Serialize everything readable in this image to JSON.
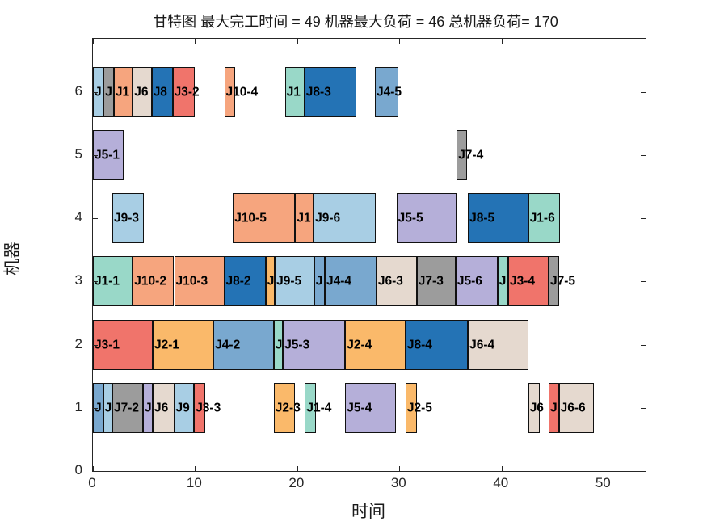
{
  "window": {
    "background": "#ffffff"
  },
  "chart_data": {
    "type": "gantt",
    "title": "甘特图 最大完工时间 = 49 机器最大负荷 = 46 总机器负荷= 170",
    "makespan": 49,
    "max_machine_load": 46,
    "total_machine_load": 170,
    "xlabel": "时间",
    "ylabel": "机器",
    "xlim": [
      0,
      54.1
    ],
    "ylim": [
      0,
      6.84
    ],
    "x_ticks": [
      0,
      10,
      20,
      30,
      40,
      50
    ],
    "y_ticks": [
      0,
      1,
      2,
      3,
      4,
      5,
      6
    ],
    "grid": false,
    "legend": "none",
    "axis_color": "#262626",
    "bar_edge_color": "#111111",
    "label_color": "#000000",
    "job_colors": {
      "J1": "#99d8c8",
      "J2": "#fab96a",
      "J3": "#f0746b",
      "J4": "#79a8cf",
      "J5": "#b5afd9",
      "J6": "#e5d9cf",
      "J7": "#9c9c9c",
      "J8": "#2473b5",
      "J9": "#a8cee4",
      "J10": "#f6a57e"
    },
    "tasks": [
      {
        "machine": 6,
        "job": "J9",
        "label": "J",
        "start": 0,
        "end": 1.05
      },
      {
        "machine": 6,
        "job": "J7",
        "label": "J",
        "start": 1.05,
        "end": 2.05
      },
      {
        "machine": 6,
        "job": "J10",
        "label": "J1",
        "start": 2.05,
        "end": 3.9
      },
      {
        "machine": 6,
        "job": "J6",
        "label": "J6",
        "start": 3.9,
        "end": 5.75
      },
      {
        "machine": 6,
        "job": "J8",
        "label": "J8",
        "start": 5.75,
        "end": 7.8
      },
      {
        "machine": 6,
        "job": "J3",
        "label": "J3-2",
        "start": 7.8,
        "end": 9.95
      },
      {
        "machine": 6,
        "job": "J10",
        "label": "J10-4",
        "start": 12.85,
        "end": 13.9
      },
      {
        "machine": 6,
        "job": "J1",
        "label": "J1",
        "start": 18.8,
        "end": 20.7
      },
      {
        "machine": 6,
        "job": "J8",
        "label": "J8-3",
        "start": 20.7,
        "end": 25.75
      },
      {
        "machine": 6,
        "job": "J4",
        "label": "J4-5",
        "start": 27.6,
        "end": 29.9
      },
      {
        "machine": 5,
        "job": "J5",
        "label": "J5-1",
        "start": 0,
        "end": 3.0
      },
      {
        "machine": 5,
        "job": "J7",
        "label": "J7-4",
        "start": 35.6,
        "end": 36.6
      },
      {
        "machine": 4,
        "job": "J9",
        "label": "J9-3",
        "start": 1.9,
        "end": 5.0
      },
      {
        "machine": 4,
        "job": "J10",
        "label": "J10-5",
        "start": 13.7,
        "end": 19.8
      },
      {
        "machine": 4,
        "job": "J10",
        "label": "J1",
        "start": 19.8,
        "end": 21.6
      },
      {
        "machine": 4,
        "job": "J9",
        "label": "J9-6",
        "start": 21.6,
        "end": 27.7
      },
      {
        "machine": 4,
        "job": "J5",
        "label": "J5-5",
        "start": 29.7,
        "end": 35.6
      },
      {
        "machine": 4,
        "job": "J8",
        "label": "J8-5",
        "start": 36.7,
        "end": 42.6
      },
      {
        "machine": 4,
        "job": "J1",
        "label": "J1-6",
        "start": 42.6,
        "end": 45.7
      },
      {
        "machine": 3,
        "job": "J1",
        "label": "J1-1",
        "start": 0,
        "end": 3.9
      },
      {
        "machine": 3,
        "job": "J10",
        "label": "J10-2",
        "start": 3.9,
        "end": 7.95
      },
      {
        "machine": 3,
        "job": "J10",
        "label": "J10-3",
        "start": 7.95,
        "end": 12.85
      },
      {
        "machine": 3,
        "job": "J8",
        "label": "J8-2",
        "start": 12.85,
        "end": 16.9
      },
      {
        "machine": 3,
        "job": "J2",
        "label": "J",
        "start": 16.9,
        "end": 17.8
      },
      {
        "machine": 3,
        "job": "J9",
        "label": "J9-5",
        "start": 17.8,
        "end": 21.65
      },
      {
        "machine": 3,
        "job": "J4",
        "label": "J",
        "start": 21.65,
        "end": 22.7
      },
      {
        "machine": 3,
        "job": "J4",
        "label": "J4-4",
        "start": 22.7,
        "end": 27.75
      },
      {
        "machine": 3,
        "job": "J6",
        "label": "J6-3",
        "start": 27.75,
        "end": 31.7
      },
      {
        "machine": 3,
        "job": "J7",
        "label": "J7-3",
        "start": 31.7,
        "end": 35.5
      },
      {
        "machine": 3,
        "job": "J5",
        "label": "J5-6",
        "start": 35.5,
        "end": 39.6
      },
      {
        "machine": 3,
        "job": "J1",
        "label": "J",
        "start": 39.6,
        "end": 40.65
      },
      {
        "machine": 3,
        "job": "J3",
        "label": "J3-4",
        "start": 40.65,
        "end": 44.6
      },
      {
        "machine": 3,
        "job": "J7",
        "label": "J7-5",
        "start": 44.6,
        "end": 45.65
      },
      {
        "machine": 2,
        "job": "J3",
        "label": "J3-1",
        "start": 0,
        "end": 5.85
      },
      {
        "machine": 2,
        "job": "J2",
        "label": "J2-1",
        "start": 5.85,
        "end": 11.8
      },
      {
        "machine": 2,
        "job": "J4",
        "label": "J4-2",
        "start": 11.8,
        "end": 17.7
      },
      {
        "machine": 2,
        "job": "J1",
        "label": "J",
        "start": 17.7,
        "end": 18.6
      },
      {
        "machine": 2,
        "job": "J5",
        "label": "J5-3",
        "start": 18.6,
        "end": 24.7
      },
      {
        "machine": 2,
        "job": "J2",
        "label": "J2-4",
        "start": 24.7,
        "end": 30.6
      },
      {
        "machine": 2,
        "job": "J8",
        "label": "J8-4",
        "start": 30.6,
        "end": 36.7
      },
      {
        "machine": 2,
        "job": "J6",
        "label": "J6-4",
        "start": 36.7,
        "end": 42.6
      },
      {
        "machine": 1,
        "job": "J4",
        "label": "J",
        "start": 0,
        "end": 1.0
      },
      {
        "machine": 1,
        "job": "J9",
        "label": "J",
        "start": 1.0,
        "end": 1.9
      },
      {
        "machine": 1,
        "job": "J7",
        "label": "J7-2",
        "start": 1.9,
        "end": 4.9
      },
      {
        "machine": 1,
        "job": "J5",
        "label": "J",
        "start": 4.9,
        "end": 5.85
      },
      {
        "machine": 1,
        "job": "J6",
        "label": "J6",
        "start": 5.85,
        "end": 7.95
      },
      {
        "machine": 1,
        "job": "J9",
        "label": "J9",
        "start": 7.95,
        "end": 9.9
      },
      {
        "machine": 1,
        "job": "J3",
        "label": "J3-3",
        "start": 9.9,
        "end": 11.0
      },
      {
        "machine": 1,
        "job": "J2",
        "label": "J2-3",
        "start": 17.7,
        "end": 19.8
      },
      {
        "machine": 1,
        "job": "J1",
        "label": "J1-4",
        "start": 20.75,
        "end": 21.8
      },
      {
        "machine": 1,
        "job": "J5",
        "label": "J5-4",
        "start": 24.7,
        "end": 29.7
      },
      {
        "machine": 1,
        "job": "J2",
        "label": "J2-5",
        "start": 30.6,
        "end": 31.7
      },
      {
        "machine": 1,
        "job": "J6",
        "label": "J6",
        "start": 42.6,
        "end": 43.7
      },
      {
        "machine": 1,
        "job": "J3",
        "label": "J",
        "start": 44.6,
        "end": 45.6
      },
      {
        "machine": 1,
        "job": "J6",
        "label": "J6-6",
        "start": 45.6,
        "end": 49.0
      }
    ]
  }
}
